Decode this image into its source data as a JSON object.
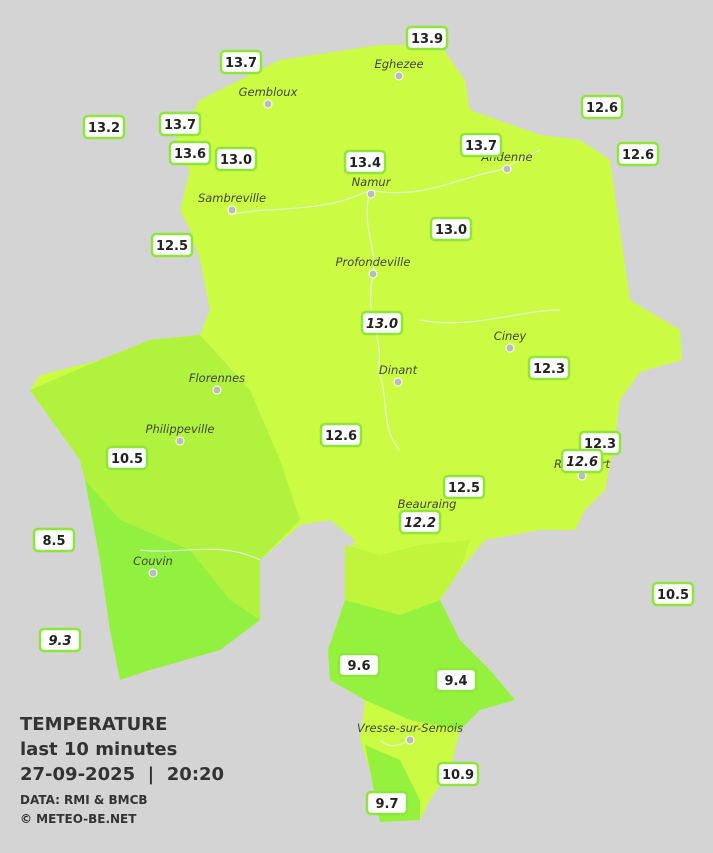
{
  "map": {
    "cities": [
      "Eghezee",
      "Gembloux",
      "Andenne",
      "Namur",
      "Sambreville",
      "Profondeville",
      "Ciney",
      "Dinant",
      "Florennes",
      "Philippeville",
      "Couvin",
      "Vresse-sur-Semois",
      "Beauraing",
      "Rochefort"
    ],
    "stations": [
      {
        "value": "13.9",
        "italic": false
      },
      {
        "value": "13.7",
        "italic": false
      },
      {
        "value": "13.2",
        "italic": false
      },
      {
        "value": "13.7",
        "italic": false
      },
      {
        "value": "12.6",
        "italic": false
      },
      {
        "value": "13.6",
        "italic": false
      },
      {
        "value": "13.0",
        "italic": false
      },
      {
        "value": "13.4",
        "italic": false
      },
      {
        "value": "13.7",
        "italic": false
      },
      {
        "value": "12.6",
        "italic": false
      },
      {
        "value": "12.5",
        "italic": false
      },
      {
        "value": "13.0",
        "italic": false
      },
      {
        "value": "13.0",
        "italic": true
      },
      {
        "value": "12.3",
        "italic": false
      },
      {
        "value": "12.6",
        "italic": false
      },
      {
        "value": "10.5",
        "italic": false
      },
      {
        "value": "12.3",
        "italic": false
      },
      {
        "value": "12.6",
        "italic": true
      },
      {
        "value": "12.5",
        "italic": false
      },
      {
        "value": "12.2",
        "italic": true
      },
      {
        "value": "8.5",
        "italic": false
      },
      {
        "value": "10.5",
        "italic": false
      },
      {
        "value": "9.3",
        "italic": true
      },
      {
        "value": "9.6",
        "italic": false
      },
      {
        "value": "9.4",
        "italic": false
      },
      {
        "value": "10.9",
        "italic": false
      },
      {
        "value": "9.7",
        "italic": false
      }
    ]
  },
  "legend": {
    "title": "TEMPERATURE",
    "subtitle": "last 10 minutes",
    "datetime": "27-09-2025  |  20:20",
    "source": "DATA: RMI & BMCB",
    "credit": "© METEO-BE.NET"
  }
}
